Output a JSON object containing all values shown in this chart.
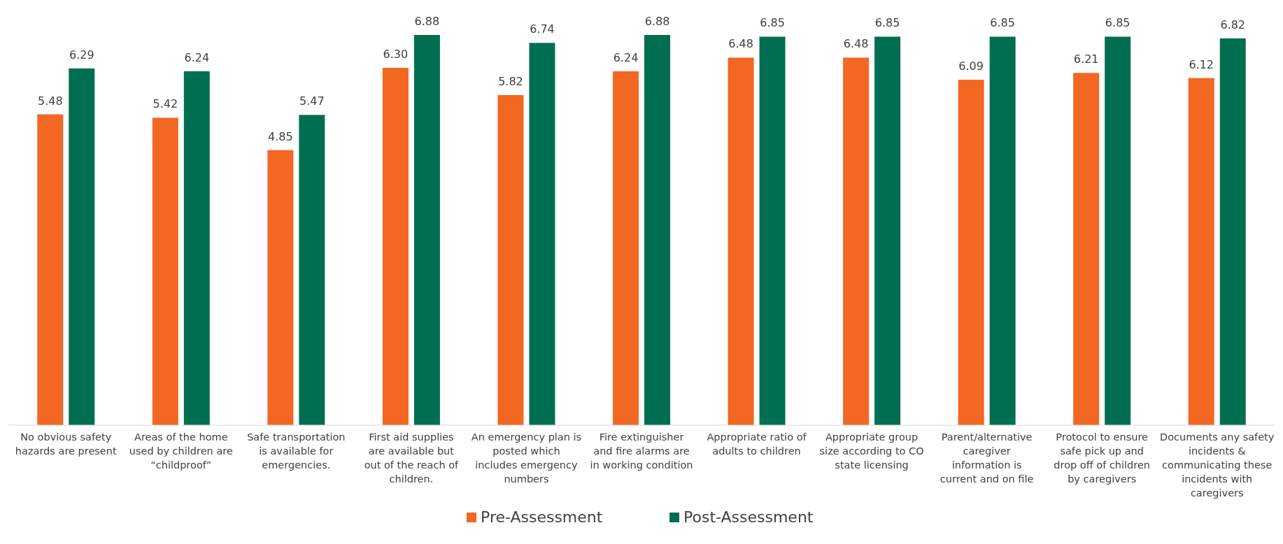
{
  "chart_data": {
    "type": "bar",
    "categories": [
      "No obvious safety hazards are present",
      "Areas of the home used by children are “childproof”",
      "Safe transportation is available for emergencies.",
      "First aid supplies are available but out of the reach of children.",
      "An emergency plan is posted which includes emergency numbers",
      "Fire extinguisher and fire alarms are in working condition",
      "Appropriate ratio of adults to children",
      "Appropriate group size according to CO state licensing",
      "Parent/alternative caregiver information is current and on file",
      "Protocol to ensure safe pick up and drop off of children by caregivers",
      "Documents any safety incidents & communicating these incidents with caregivers"
    ],
    "series": [
      {
        "name": "Pre-Assessment",
        "color": "#f26722",
        "values": [
          5.48,
          5.42,
          4.85,
          6.3,
          5.82,
          6.24,
          6.48,
          6.48,
          6.09,
          6.21,
          6.12
        ],
        "value_labels": [
          "5.48",
          "5.42",
          "4.85",
          "6.30",
          "5.82",
          "6.24",
          "6.48",
          "6.48",
          "6.09",
          "6.21",
          "6.12"
        ]
      },
      {
        "name": "Post-Assessment",
        "color": "#006f51",
        "values": [
          6.29,
          6.24,
          5.47,
          6.88,
          6.74,
          6.88,
          6.85,
          6.85,
          6.85,
          6.85,
          6.82
        ],
        "value_labels": [
          "6.29",
          "6.24",
          "5.47",
          "6.88",
          "6.74",
          "6.88",
          "6.85",
          "6.85",
          "6.85",
          "6.85",
          "6.82"
        ]
      }
    ],
    "legend": "bottom",
    "grid": false
  }
}
